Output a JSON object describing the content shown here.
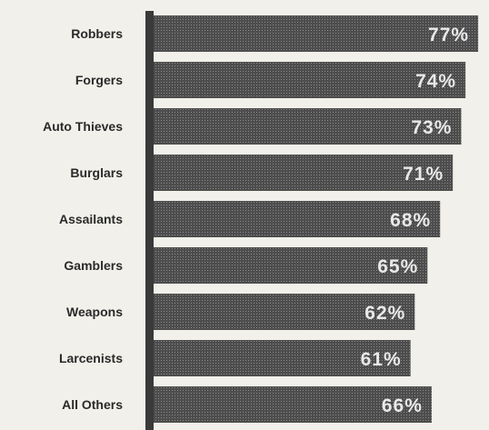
{
  "colors": {
    "background": "#f1f0ea",
    "bar": "#4d4d4d",
    "axis": "#3a3a3a",
    "label_text": "#2a2a2a",
    "value_text": "#e9e9e9"
  },
  "chart_data": {
    "type": "bar",
    "orientation": "horizontal",
    "title": "",
    "xlabel": "",
    "ylabel": "",
    "categories": [
      "Robbers",
      "Forgers",
      "Auto Thieves",
      "Burglars",
      "Assailants",
      "Gamblers",
      "Weapons",
      "Larcenists",
      "All Others"
    ],
    "values": [
      77,
      74,
      73,
      71,
      68,
      65,
      62,
      61,
      66
    ],
    "data_labels": [
      "77%",
      "74%",
      "73%",
      "71%",
      "68%",
      "65%",
      "62%",
      "61%",
      "66%"
    ],
    "xlim": [
      0,
      80
    ],
    "grid": false,
    "legend": "none"
  }
}
